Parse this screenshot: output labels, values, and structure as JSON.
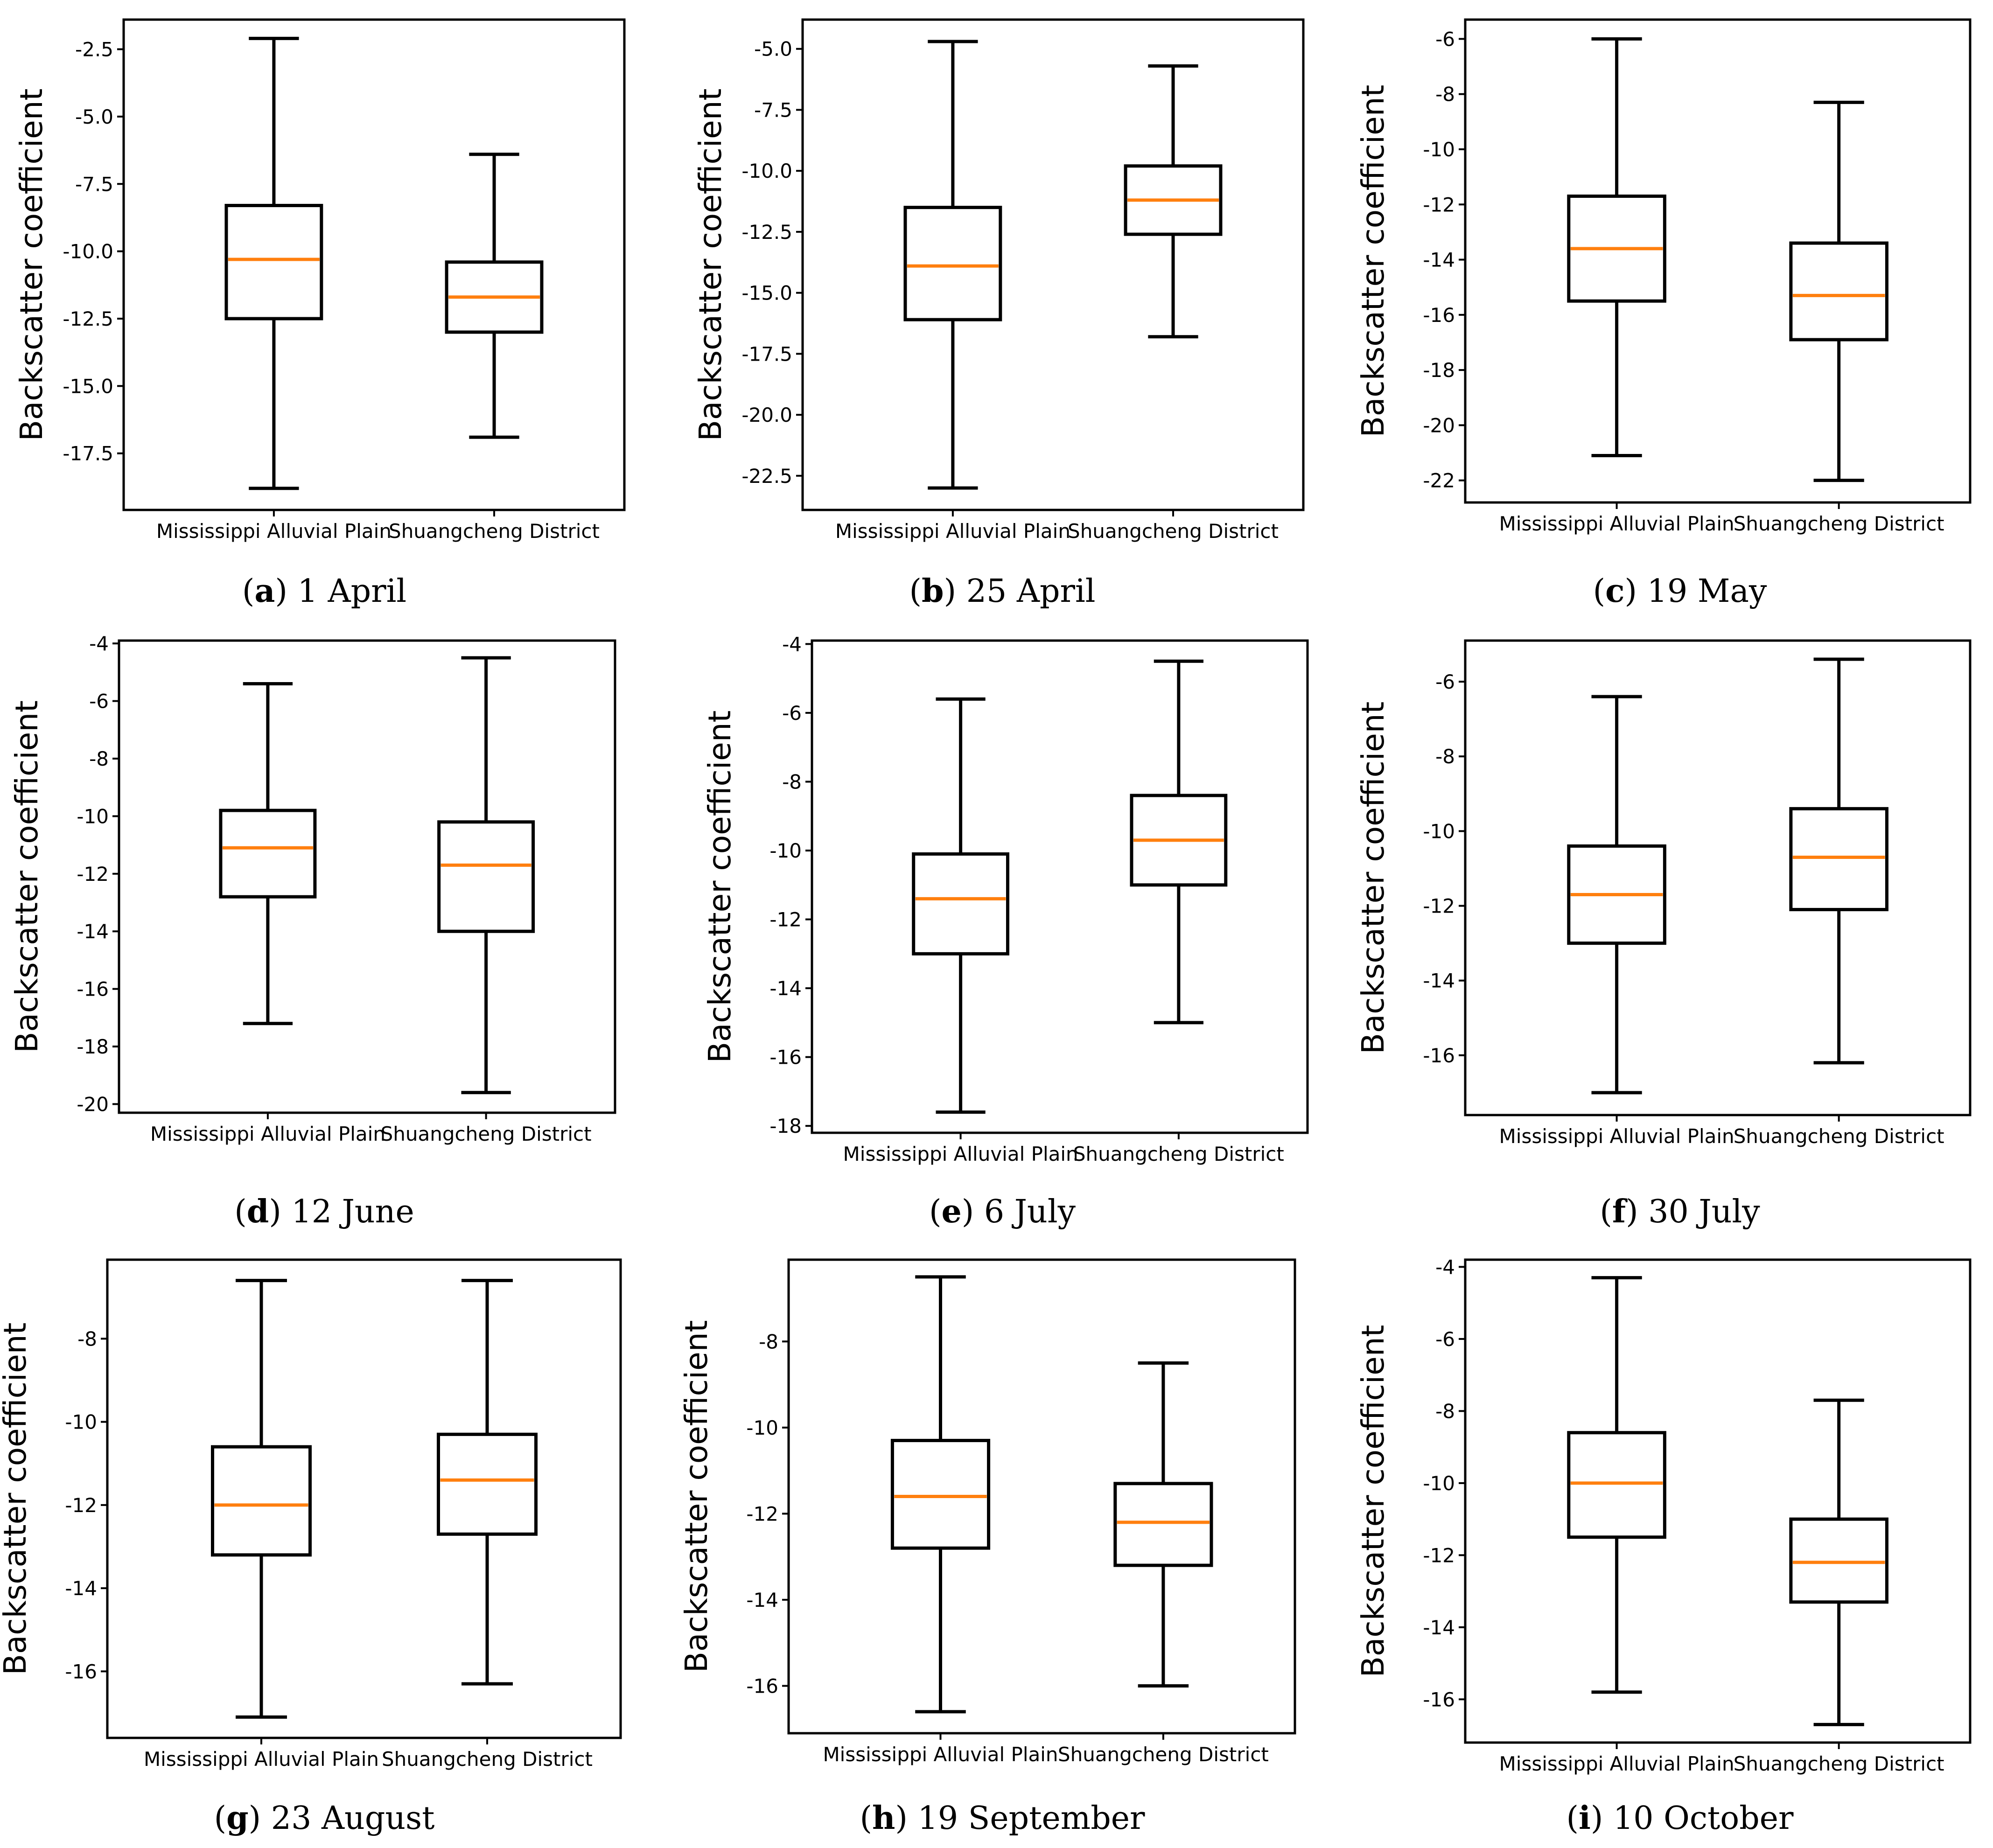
{
  "chart_data": [
    {
      "type": "boxplot",
      "caption_letter": "a",
      "caption_text": "1 April",
      "ylabel": "Backscatter coefficient",
      "categories": [
        "Mississippi Alluvial Plain",
        "Shuangcheng District"
      ],
      "ylim": [
        -19.6,
        -1.4
      ],
      "yticks": [
        -2.5,
        -5.0,
        -7.5,
        -10.0,
        -12.5,
        -15.0,
        -17.5
      ],
      "yticklabels": [
        "-2.5",
        "-5.0",
        "-7.5",
        "-10.0",
        "-12.5",
        "-15.0",
        "-17.5"
      ],
      "series": [
        {
          "name": "Mississippi Alluvial Plain",
          "min": -18.8,
          "q1": -12.5,
          "median": -10.3,
          "q3": -8.3,
          "max": -2.1
        },
        {
          "name": "Shuangcheng District",
          "min": -16.9,
          "q1": -13.0,
          "median": -11.7,
          "q3": -10.4,
          "max": -6.4
        }
      ]
    },
    {
      "type": "boxplot",
      "caption_letter": "b",
      "caption_text": "25 April",
      "ylabel": "Backscatter coefficient",
      "categories": [
        "Mississippi Alluvial Plain",
        "Shuangcheng District"
      ],
      "ylim": [
        -23.9,
        -3.8
      ],
      "yticks": [
        -5.0,
        -7.5,
        -10.0,
        -12.5,
        -15.0,
        -17.5,
        -20.0,
        -22.5
      ],
      "yticklabels": [
        "-5.0",
        "-7.5",
        "-10.0",
        "-12.5",
        "-15.0",
        "-17.5",
        "-20.0",
        "-22.5"
      ],
      "series": [
        {
          "name": "Mississippi Alluvial Plain",
          "min": -23.0,
          "q1": -16.1,
          "median": -13.9,
          "q3": -11.5,
          "max": -4.7
        },
        {
          "name": "Shuangcheng District",
          "min": -16.8,
          "q1": -12.6,
          "median": -11.2,
          "q3": -9.8,
          "max": -5.7
        }
      ]
    },
    {
      "type": "boxplot",
      "caption_letter": "c",
      "caption_text": "19 May",
      "ylabel": "Backscatter coefficient",
      "categories": [
        "Mississippi Alluvial Plain",
        "Shuangcheng District"
      ],
      "ylim": [
        -22.8,
        -5.3
      ],
      "yticks": [
        -6,
        -8,
        -10,
        -12,
        -14,
        -16,
        -18,
        -20,
        -22
      ],
      "yticklabels": [
        "-6",
        "-8",
        "-10",
        "-12",
        "-14",
        "-16",
        "-18",
        "-20",
        "-22"
      ],
      "series": [
        {
          "name": "Mississippi Alluvial Plain",
          "min": -21.1,
          "q1": -15.5,
          "median": -13.6,
          "q3": -11.7,
          "max": -6.0
        },
        {
          "name": "Shuangcheng District",
          "min": -22.0,
          "q1": -16.9,
          "median": -15.3,
          "q3": -13.4,
          "max": -8.3
        }
      ]
    },
    {
      "type": "boxplot",
      "caption_letter": "d",
      "caption_text": "12 June",
      "ylabel": "Backscatter coefficient",
      "categories": [
        "Mississippi Alluvial Plain",
        "Shuangcheng District"
      ],
      "ylim": [
        -20.3,
        -3.9
      ],
      "yticks": [
        -4,
        -6,
        -8,
        -10,
        -12,
        -14,
        -16,
        -18,
        -20
      ],
      "yticklabels": [
        "-4",
        "-6",
        "-8",
        "-10",
        "-12",
        "-14",
        "-16",
        "-18",
        "-20"
      ],
      "series": [
        {
          "name": "Mississippi Alluvial Plain",
          "min": -17.2,
          "q1": -12.8,
          "median": -11.1,
          "q3": -9.8,
          "max": -5.4
        },
        {
          "name": "Shuangcheng District",
          "min": -19.6,
          "q1": -14.0,
          "median": -11.7,
          "q3": -10.2,
          "max": -4.5
        }
      ]
    },
    {
      "type": "boxplot",
      "caption_letter": "e",
      "caption_text": "6 July",
      "ylabel": "Backscatter coefficient",
      "categories": [
        "Mississippi Alluvial Plain",
        "Shuangcheng District"
      ],
      "ylim": [
        -18.2,
        -3.9
      ],
      "yticks": [
        -4,
        -6,
        -8,
        -10,
        -12,
        -14,
        -16,
        -18
      ],
      "yticklabels": [
        "-4",
        "-6",
        "-8",
        "-10",
        "-12",
        "-14",
        "-16",
        "-18"
      ],
      "series": [
        {
          "name": "Mississippi Alluvial Plain",
          "min": -17.6,
          "q1": -13.0,
          "median": -11.4,
          "q3": -10.1,
          "max": -5.6
        },
        {
          "name": "Shuangcheng District",
          "min": -15.0,
          "q1": -11.0,
          "median": -9.7,
          "q3": -8.4,
          "max": -4.5
        }
      ]
    },
    {
      "type": "boxplot",
      "caption_letter": "f",
      "caption_text": "30 July",
      "ylabel": "Backscatter coefficient",
      "categories": [
        "Mississippi Alluvial Plain",
        "Shuangcheng District"
      ],
      "ylim": [
        -17.6,
        -4.9
      ],
      "yticks": [
        -6,
        -8,
        -10,
        -12,
        -14,
        -16
      ],
      "yticklabels": [
        "-6",
        "-8",
        "-10",
        "-12",
        "-14",
        "-16"
      ],
      "series": [
        {
          "name": "Mississippi Alluvial Plain",
          "min": -17.0,
          "q1": -13.0,
          "median": -11.7,
          "q3": -10.4,
          "max": -6.4
        },
        {
          "name": "Shuangcheng District",
          "min": -16.2,
          "q1": -12.1,
          "median": -10.7,
          "q3": -9.4,
          "max": -5.4
        }
      ]
    },
    {
      "type": "boxplot",
      "caption_letter": "g",
      "caption_text": "23 August",
      "ylabel": "Backscatter coefficient",
      "categories": [
        "Mississippi Alluvial Plain",
        "Shuangcheng District"
      ],
      "ylim": [
        -17.6,
        -6.1
      ],
      "yticks": [
        -8,
        -10,
        -12,
        -14,
        -16
      ],
      "yticklabels": [
        "-8",
        "-10",
        "-12",
        "-14",
        "-16"
      ],
      "series": [
        {
          "name": "Mississippi Alluvial Plain",
          "min": -17.1,
          "q1": -13.2,
          "median": -12.0,
          "q3": -10.6,
          "max": -6.6
        },
        {
          "name": "Shuangcheng District",
          "min": -16.3,
          "q1": -12.7,
          "median": -11.4,
          "q3": -10.3,
          "max": -6.6
        }
      ]
    },
    {
      "type": "boxplot",
      "caption_letter": "h",
      "caption_text": "19 September",
      "ylabel": "Backscatter coefficient",
      "categories": [
        "Mississippi Alluvial Plain",
        "Shuangcheng District"
      ],
      "ylim": [
        -17.1,
        -6.1
      ],
      "yticks": [
        -8,
        -10,
        -12,
        -14,
        -16
      ],
      "yticklabels": [
        "-8",
        "-10",
        "-12",
        "-14",
        "-16"
      ],
      "series": [
        {
          "name": "Mississippi Alluvial Plain",
          "min": -16.6,
          "q1": -12.8,
          "median": -11.6,
          "q3": -10.3,
          "max": -6.5
        },
        {
          "name": "Shuangcheng District",
          "min": -16.0,
          "q1": -13.2,
          "median": -12.2,
          "q3": -11.3,
          "max": -8.5
        }
      ]
    },
    {
      "type": "boxplot",
      "caption_letter": "i",
      "caption_text": "10 October",
      "ylabel": "Backscatter coefficient",
      "categories": [
        "Mississippi Alluvial Plain",
        "Shuangcheng District"
      ],
      "ylim": [
        -17.2,
        -3.8
      ],
      "yticks": [
        -4,
        -6,
        -8,
        -10,
        -12,
        -14,
        -16
      ],
      "yticklabels": [
        "-4",
        "-6",
        "-8",
        "-10",
        "-12",
        "-14",
        "-16"
      ],
      "series": [
        {
          "name": "Mississippi Alluvial Plain",
          "min": -15.8,
          "q1": -11.5,
          "median": -10.0,
          "q3": -8.6,
          "max": -4.3
        },
        {
          "name": "Shuangcheng District",
          "min": -16.7,
          "q1": -13.3,
          "median": -12.2,
          "q3": -11.0,
          "max": -7.7
        }
      ]
    }
  ],
  "style": {
    "box_color": "#000000",
    "median_color": "#ff7f0e"
  }
}
